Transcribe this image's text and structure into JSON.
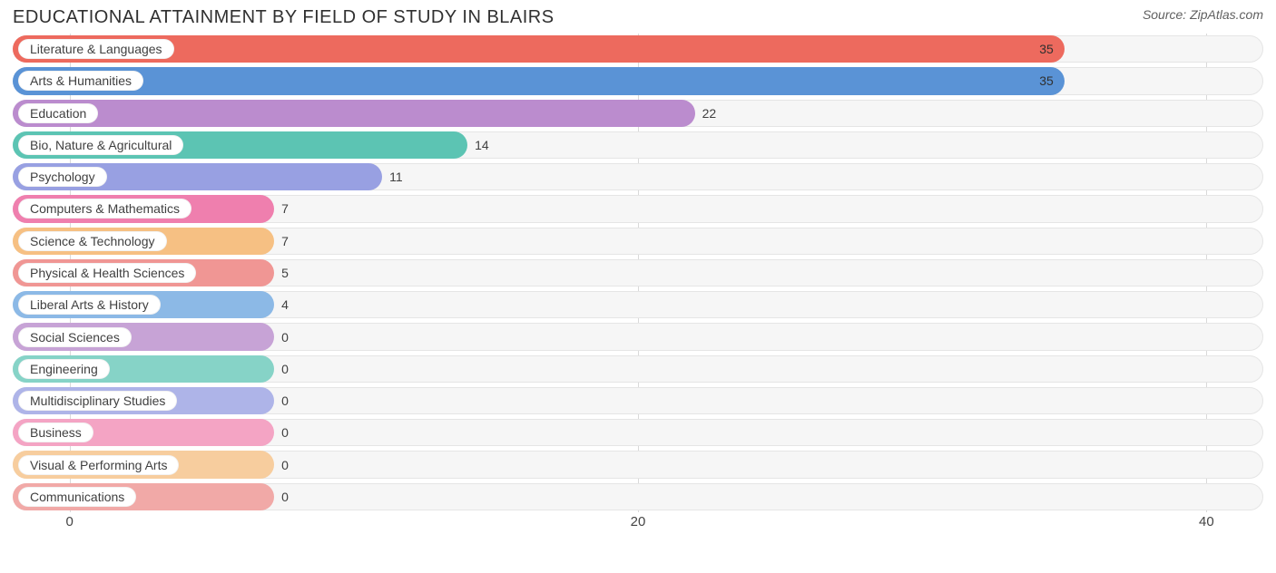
{
  "title": "EDUCATIONAL ATTAINMENT BY FIELD OF STUDY IN BLAIRS",
  "source": "Source: ZipAtlas.com",
  "chart": {
    "type": "bar-horizontal",
    "x_axis": {
      "min": -2,
      "max": 42,
      "ticks": [
        0,
        20,
        40
      ],
      "tick_labels": [
        "0",
        "20",
        "40"
      ]
    },
    "track_bg": "#f6f6f6",
    "track_border": "#e5e5e5",
    "grid_color": "#d9d9d9",
    "label_fontsize": 14,
    "value_fontsize": 14,
    "min_bar_value_for_width": 7.2,
    "value_inside_threshold": 30,
    "rows": [
      {
        "label": "Literature & Languages",
        "value": 35,
        "color": "#ed6a5e"
      },
      {
        "label": "Arts & Humanities",
        "value": 35,
        "color": "#5a93d6"
      },
      {
        "label": "Education",
        "value": 22,
        "color": "#bb8cce"
      },
      {
        "label": "Bio, Nature & Agricultural",
        "value": 14,
        "color": "#5cc4b3"
      },
      {
        "label": "Psychology",
        "value": 11,
        "color": "#98a0e2"
      },
      {
        "label": "Computers & Mathematics",
        "value": 7,
        "color": "#ef7fae"
      },
      {
        "label": "Science & Technology",
        "value": 7,
        "color": "#f6c083"
      },
      {
        "label": "Physical & Health Sciences",
        "value": 5,
        "color": "#f09694"
      },
      {
        "label": "Liberal Arts & History",
        "value": 4,
        "color": "#8cb9e6"
      },
      {
        "label": "Social Sciences",
        "value": 0,
        "color": "#c7a3d6"
      },
      {
        "label": "Engineering",
        "value": 0,
        "color": "#86d3c7"
      },
      {
        "label": "Multidisciplinary Studies",
        "value": 0,
        "color": "#aeb4e8"
      },
      {
        "label": "Business",
        "value": 0,
        "color": "#f4a4c4"
      },
      {
        "label": "Visual & Performing Arts",
        "value": 0,
        "color": "#f7cd9e"
      },
      {
        "label": "Communications",
        "value": 0,
        "color": "#f1a9a7"
      }
    ]
  }
}
